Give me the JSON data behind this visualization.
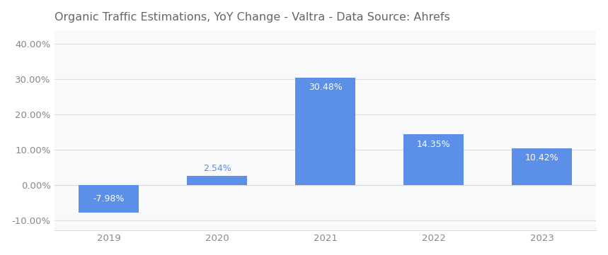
{
  "title": "Organic Traffic Estimations, YoY Change - Valtra - Data Source: Ahrefs",
  "categories": [
    "2019",
    "2020",
    "2021",
    "2022",
    "2023"
  ],
  "values": [
    -7.98,
    2.54,
    30.48,
    14.35,
    10.42
  ],
  "labels": [
    "-7.98%",
    "2.54%",
    "30.48%",
    "14.35%",
    "10.42%"
  ],
  "bar_color": "#5B8FE8",
  "label_color_white": "#FFFFFF",
  "label_color_blue": "#5B8FE8",
  "ylim": [
    -13,
    44
  ],
  "yticks": [
    -10,
    0,
    10,
    20,
    30,
    40
  ],
  "background_color": "#FFFFFF",
  "plot_bg_color": "#F8F9FA",
  "grid_color": "#DDDDDD",
  "title_fontsize": 11.5,
  "tick_fontsize": 9.5,
  "label_fontsize": 9,
  "bar_width": 0.55,
  "title_color": "#666666",
  "tick_color": "#888888"
}
